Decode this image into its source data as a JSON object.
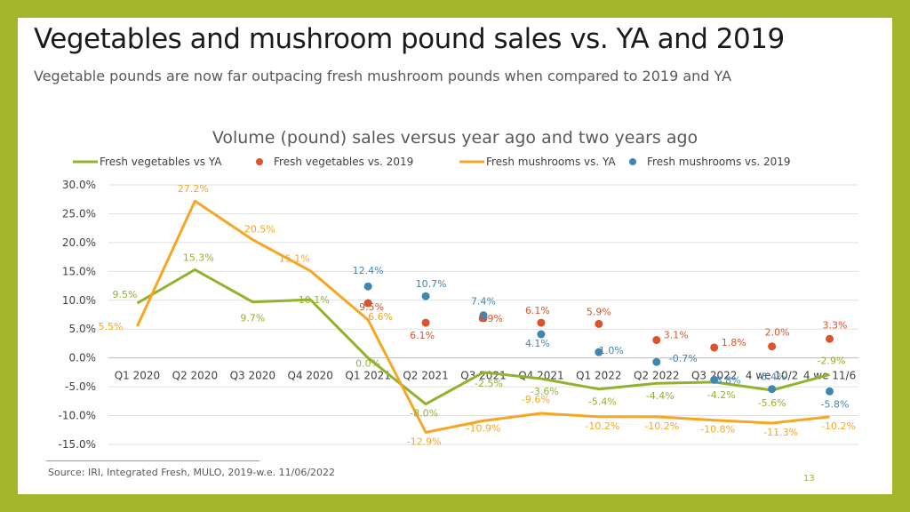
{
  "slide": {
    "title": "Vegetables and mushroom pound sales vs. YA and 2019",
    "subtitle": "Vegetable pounds are now far outpacing fresh mushroom pounds when compared to 2019 and YA",
    "source": "Source: IRI, Integrated Fresh, MULO, 2019-w.e. 11/06/2022",
    "page_number": "13"
  },
  "colors": {
    "background_frame": "#a3b52a",
    "veg_ya": "#92b22e",
    "veg_2019": "#d9532b",
    "mush_ya": "#f5a623",
    "mush_2019": "#3f87b3"
  },
  "chart_data": {
    "type": "line",
    "title": "Volume (pound) sales versus year ago and two years ago",
    "categories": [
      "Q1 2020",
      "Q2 2020",
      "Q3 2020",
      "Q4 2020",
      "Q1 2021",
      "Q2 2021",
      "Q3 2021",
      "Q4 2021",
      "Q1 2022",
      "Q2 2022",
      "Q3 2022",
      "4 we 10/2",
      "4 we 11/6"
    ],
    "ylim": [
      -15,
      30
    ],
    "yticks": [
      "30.0%",
      "25.0%",
      "20.0%",
      "15.0%",
      "10.0%",
      "5.0%",
      "0.0%",
      "-5.0%",
      "-10.0%",
      "-15.0%"
    ],
    "ytick_values": [
      30,
      25,
      20,
      15,
      10,
      5,
      0,
      -5,
      -10,
      -15
    ],
    "legend_position": "top",
    "series": [
      {
        "name": "Fresh vegetables vs YA",
        "style": "line",
        "color": "#92b22e",
        "values": [
          9.5,
          15.3,
          9.7,
          10.1,
          0.0,
          -8.0,
          -2.5,
          -3.6,
          -5.4,
          -4.4,
          -4.2,
          -5.6,
          -2.9
        ],
        "labels": [
          "9.5%",
          "15.3%",
          "9.7%",
          "10.1%",
          "0.0%",
          "-8.0%",
          "-2.5%",
          "-3.6%",
          "-5.4%",
          "-4.4%",
          "-4.2%",
          "-5.6%",
          "-2.9%"
        ]
      },
      {
        "name": "Fresh vegetables vs. 2019",
        "style": "marker",
        "color": "#d9532b",
        "values": [
          null,
          null,
          null,
          null,
          9.5,
          6.1,
          6.9,
          6.1,
          5.9,
          3.1,
          1.8,
          2.0,
          3.3
        ],
        "labels": [
          "",
          "",
          "",
          "",
          "9.5%",
          "6.1%",
          "6.9%",
          "6.1%",
          "5.9%",
          "3.1%",
          "1.8%",
          "2.0%",
          "3.3%"
        ]
      },
      {
        "name": "Fresh mushrooms vs. YA",
        "style": "line",
        "color": "#f5a623",
        "values": [
          5.5,
          27.2,
          20.5,
          15.1,
          6.6,
          -12.9,
          -10.9,
          -9.6,
          -10.2,
          -10.2,
          -10.8,
          -11.3,
          -10.2
        ],
        "labels": [
          "5.5%",
          "27.2%",
          "20.5%",
          "15.1%",
          "6.6%",
          "-12.9%",
          "-10.9%",
          "-9.6%",
          "-10.2%",
          "-10.2%",
          "-10.8%",
          "-11.3%",
          "-10.2%"
        ]
      },
      {
        "name": "Fresh mushrooms vs. 2019",
        "style": "marker",
        "color": "#3f87b3",
        "values": [
          null,
          null,
          null,
          null,
          12.4,
          10.7,
          7.4,
          4.1,
          1.0,
          -0.7,
          -3.8,
          -5.4,
          -5.8
        ],
        "labels": [
          "",
          "",
          "",
          "",
          "12.4%",
          "10.7%",
          "7.4%",
          "4.1%",
          "1.0%",
          "-0.7%",
          "-3.8%",
          "-5.4%",
          "-5.8%"
        ]
      }
    ]
  }
}
